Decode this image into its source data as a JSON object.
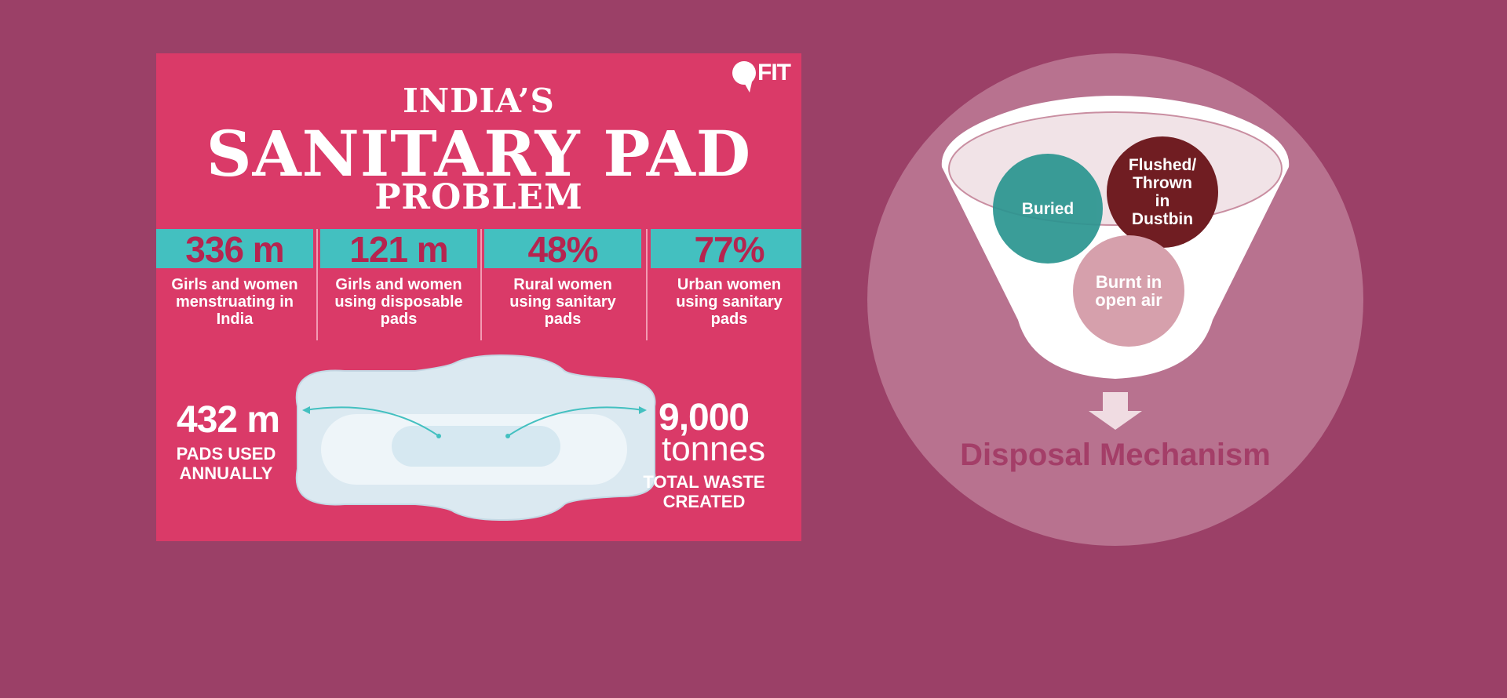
{
  "infographic": {
    "logo": "FIT",
    "title_line1": "INDIA’S",
    "title_line2": "SANITARY PAD",
    "title_line3": "PROBLEM",
    "stats": [
      {
        "value": "336 m",
        "label": "Girls and women menstruating in India"
      },
      {
        "value": "121 m",
        "label": "Girls and women using disposable pads"
      },
      {
        "value": "48%",
        "label": "Rural women using sanitary pads"
      },
      {
        "value": "77%",
        "label": "Urban women using sanitary pads"
      }
    ],
    "pads_value": "432 m",
    "pads_label": "PADS USED ANNUALLY",
    "waste_value": "9,000",
    "waste_unit": "tonnes",
    "waste_label": "TOTAL WASTE CREATED"
  },
  "disposal": {
    "methods": [
      {
        "label": "Buried",
        "color": "#2a9590"
      },
      {
        "label": "Flushed/ Thrown in Dustbin",
        "color": "#701d22"
      },
      {
        "label": "Burnt in open air",
        "color": "#d6a0ac"
      }
    ],
    "title": "Disposal Mechanism"
  },
  "colors": {
    "background": "#9b4067",
    "panel": "#da3a68",
    "teal": "#43c0c0"
  }
}
